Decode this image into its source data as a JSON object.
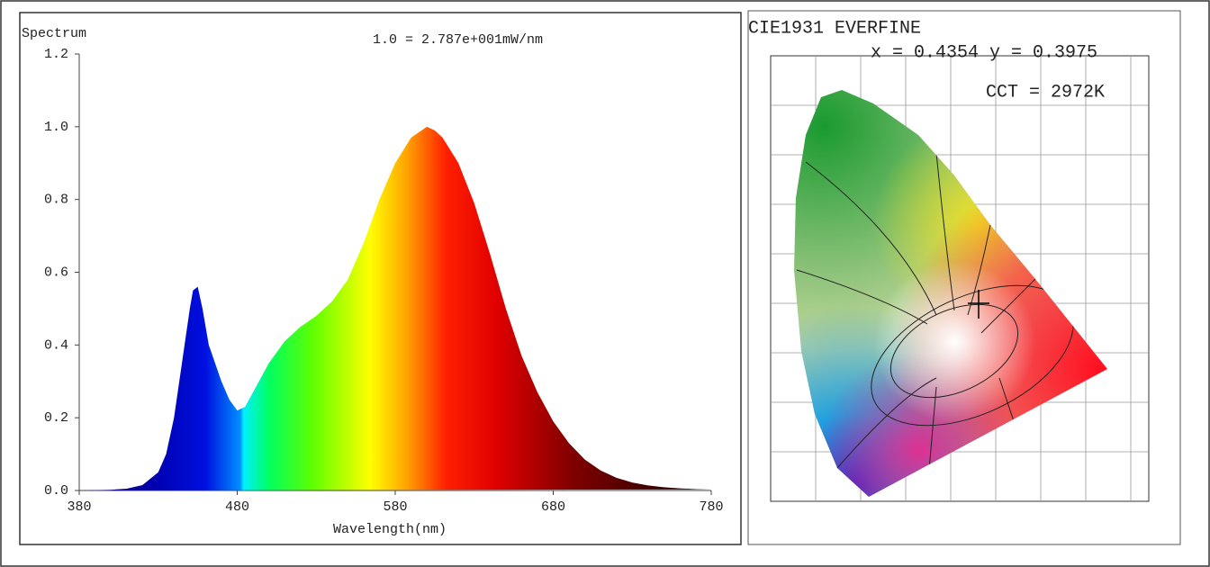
{
  "chart_data": {
    "type": "area",
    "y_label": "Spectrum",
    "annotation": "1.0 = 2.787e+001mW/nm",
    "x_label": "Wavelength(nm)",
    "x": [
      380,
      400,
      410,
      420,
      430,
      435,
      440,
      445,
      450,
      452,
      455,
      458,
      462,
      466,
      470,
      475,
      480,
      485,
      490,
      500,
      510,
      520,
      530,
      540,
      550,
      560,
      570,
      580,
      590,
      600,
      605,
      610,
      620,
      630,
      640,
      650,
      660,
      670,
      680,
      690,
      700,
      710,
      720,
      730,
      740,
      750,
      760,
      770,
      780
    ],
    "values": [
      0,
      0.002,
      0.005,
      0.015,
      0.05,
      0.1,
      0.2,
      0.35,
      0.5,
      0.55,
      0.56,
      0.5,
      0.4,
      0.35,
      0.3,
      0.25,
      0.22,
      0.23,
      0.27,
      0.35,
      0.41,
      0.45,
      0.48,
      0.52,
      0.58,
      0.68,
      0.8,
      0.9,
      0.97,
      1.0,
      0.99,
      0.97,
      0.9,
      0.79,
      0.65,
      0.5,
      0.37,
      0.27,
      0.19,
      0.13,
      0.085,
      0.055,
      0.035,
      0.022,
      0.014,
      0.009,
      0.006,
      0.004,
      0.003
    ],
    "xlim": [
      380,
      780
    ],
    "xticks": [
      380,
      480,
      580,
      680,
      780
    ],
    "ylim": [
      0,
      1.2
    ],
    "yticks": [
      {
        "value": 0,
        "label": "0.0"
      },
      0.2,
      0.4,
      0.6,
      0.8,
      {
        "value": 1,
        "label": "1.0"
      },
      1.2
    ],
    "grid": false
  },
  "cie_panel": {
    "title": "CIE1931  EVERFINE",
    "coordinates": "x = 0.4354 y = 0.3975",
    "cct": "CCT = 2972K"
  }
}
